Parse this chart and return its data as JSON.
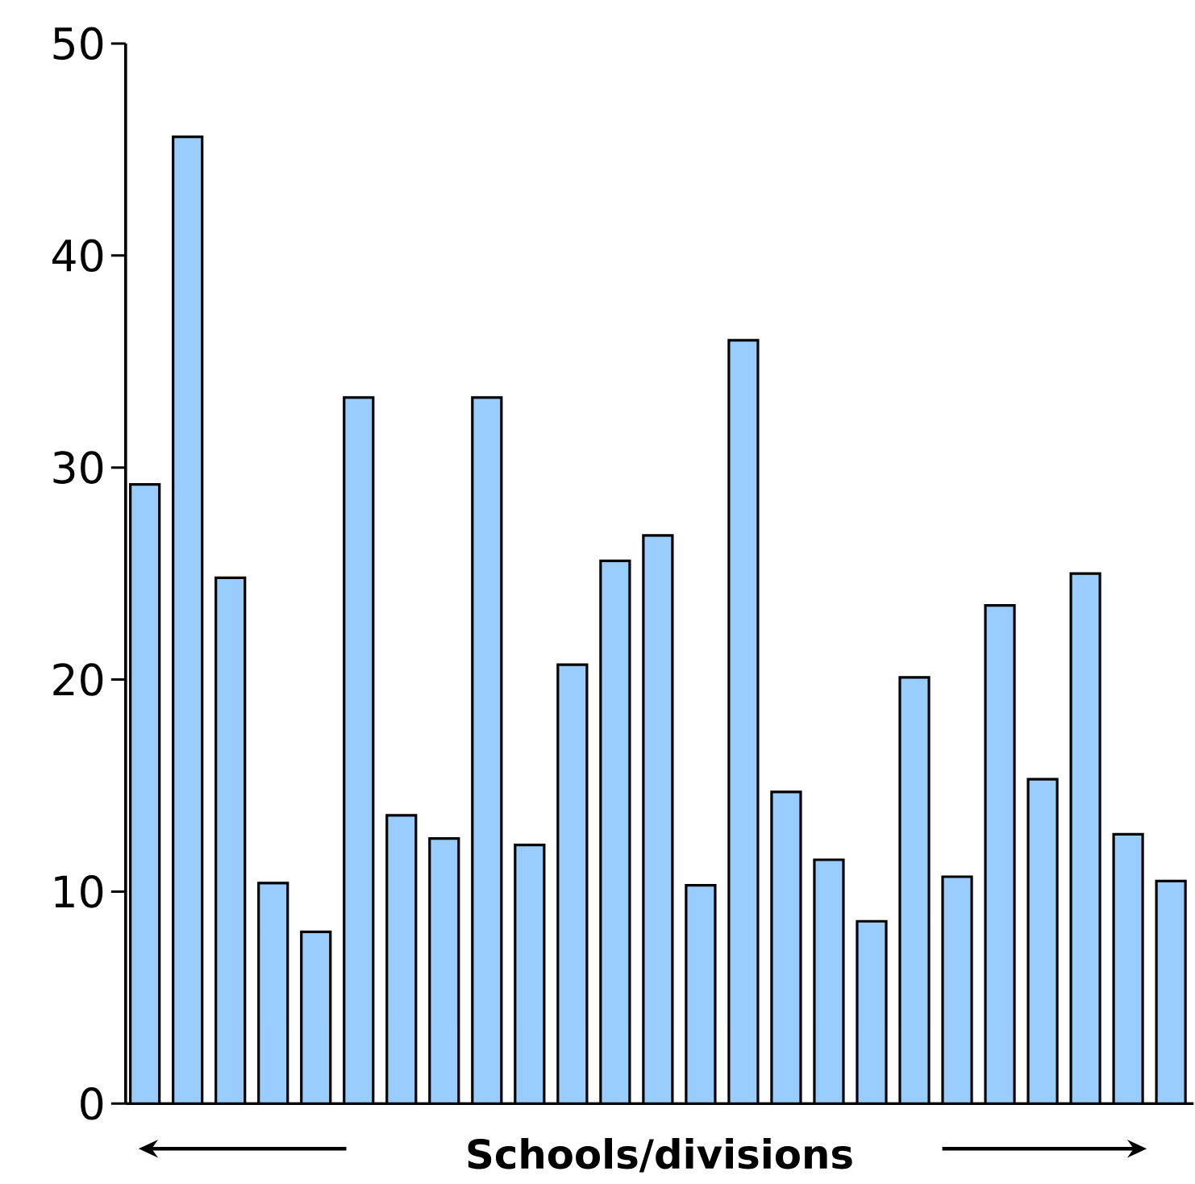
{
  "chart_data": {
    "type": "bar",
    "xlabel": "Schools/divisions",
    "categories": [
      null,
      null,
      null,
      null,
      null,
      null,
      null,
      null,
      null,
      null,
      null,
      null,
      null,
      null,
      null,
      null,
      null,
      null,
      null,
      null,
      null,
      null,
      null,
      null,
      null
    ],
    "values": [
      29.2,
      45.6,
      24.8,
      10.4,
      8.1,
      33.3,
      13.6,
      12.5,
      33.3,
      12.2,
      20.7,
      25.6,
      26.8,
      10.3,
      36.0,
      14.7,
      11.5,
      8.6,
      20.1,
      10.7,
      23.5,
      15.3,
      25.0,
      12.7,
      10.5
    ],
    "color": "#99ccff",
    "ylim": [
      0,
      50
    ],
    "yticks": [
      0,
      10,
      20,
      30,
      40,
      50
    ]
  }
}
